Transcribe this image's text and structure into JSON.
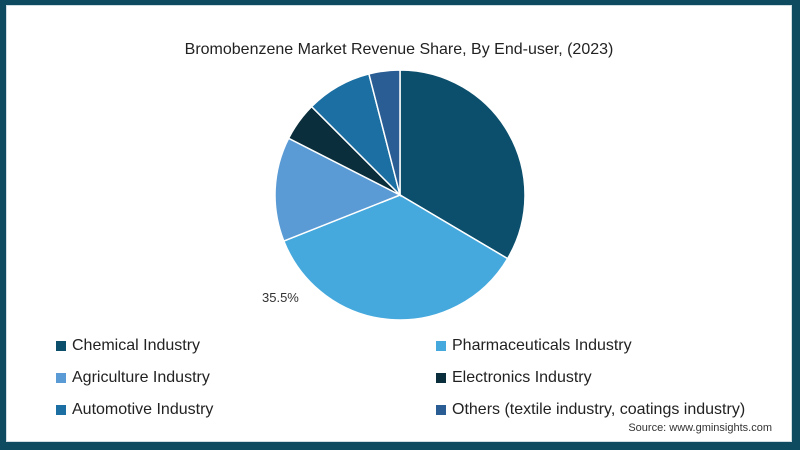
{
  "chart_data": {
    "type": "pie",
    "title": "Bromobenzene Market Revenue Share, By End-user, (2023)",
    "categories": [
      "Chemical Industry",
      "Pharmaceuticals Industry",
      "Agriculture Industry",
      "Electronics Industry",
      "Automotive Industry",
      "Others (textile industry, coatings industry)"
    ],
    "values": [
      33.5,
      35.5,
      13.5,
      5.0,
      8.5,
      4.0
    ],
    "colors": [
      "#0b4f6c",
      "#45a9dd",
      "#5b9bd5",
      "#0a2e3c",
      "#1b6fa2",
      "#2a5d94"
    ],
    "annotations": [
      {
        "category": "Pharmaceuticals Industry",
        "label": "35.5%"
      }
    ],
    "legend_position": "bottom",
    "start_angle_deg": 0,
    "direction": "clockwise"
  },
  "title": "Bromobenzene Market Revenue Share, By End-user, (2023)",
  "pct_label": "35.5%",
  "legend": [
    {
      "label": "Chemical Industry",
      "color": "#0b4f6c"
    },
    {
      "label": "Pharmaceuticals Industry",
      "color": "#45a9dd"
    },
    {
      "label": "Agriculture Industry",
      "color": "#5b9bd5"
    },
    {
      "label": "Electronics Industry",
      "color": "#0a2e3c"
    },
    {
      "label": "Automotive Industry",
      "color": "#1b6fa2"
    },
    {
      "label": "Others (textile industry, coatings industry)",
      "color": "#2a5d94"
    }
  ],
  "source": "Source: www.gminsights.com"
}
